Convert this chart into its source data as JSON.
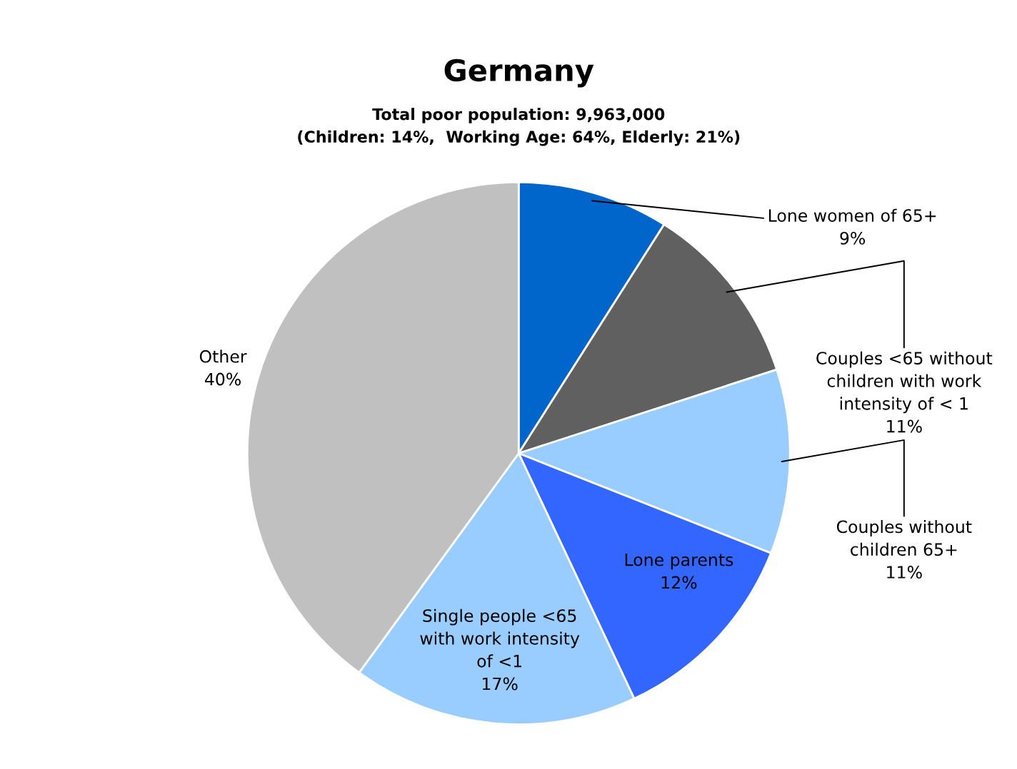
{
  "chart_data": {
    "type": "pie",
    "title": "Germany",
    "subtitle": "Total poor population: 9,963,000\n(Children: 14%,  Working Age: 64%, Elderly: 21%)",
    "categories": [
      "Lone women of 65+",
      "Couples <65 without\nchildren with work\nintensity of < 1",
      "Couples without\nchildren 65+",
      "Lone parents",
      "Single people <65\nwith work intensity\nof <1",
      "Other"
    ],
    "values": [
      9,
      11,
      11,
      12,
      17,
      40
    ],
    "colors": [
      "#0066cc",
      "#606060",
      "#99ccff",
      "#3366ff",
      "#99ccff",
      "#c0c0c0"
    ],
    "value_labels": [
      "9%",
      "11%",
      "11%",
      "12%",
      "17%",
      "40%"
    ],
    "legend": false
  }
}
